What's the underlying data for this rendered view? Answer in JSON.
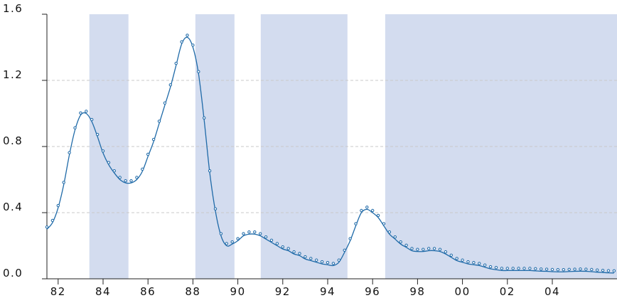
{
  "chart_data": {
    "type": "line",
    "x": [
      1981.5,
      1981.75,
      1982,
      1982.25,
      1982.5,
      1982.75,
      1983,
      1983.25,
      1983.5,
      1983.75,
      1984,
      1984.25,
      1984.5,
      1984.75,
      1985,
      1985.25,
      1985.5,
      1985.75,
      1986,
      1986.25,
      1986.5,
      1986.75,
      1987,
      1987.25,
      1987.5,
      1987.75,
      1988,
      1988.25,
      1988.5,
      1988.75,
      1989,
      1989.25,
      1989.5,
      1989.75,
      1990,
      1990.25,
      1990.5,
      1990.75,
      1991,
      1991.25,
      1991.5,
      1991.75,
      1992,
      1992.25,
      1992.5,
      1992.75,
      1993,
      1993.25,
      1993.5,
      1993.75,
      1994,
      1994.25,
      1994.5,
      1994.75,
      1995,
      1995.25,
      1995.5,
      1995.75,
      1996,
      1996.25,
      1996.5,
      1996.75,
      1997,
      1997.25,
      1997.5,
      1997.75,
      1998,
      1998.25,
      1998.5,
      1998.75,
      1999,
      1999.25,
      1999.5,
      1999.75,
      2000,
      2000.25,
      2000.5,
      2000.75,
      2001,
      2001.25,
      2001.5,
      2001.75,
      2002,
      2002.25,
      2002.5,
      2002.75,
      2003,
      2003.25,
      2003.5,
      2003.75,
      2004,
      2004.25,
      2004.5,
      2004.75,
      2005,
      2005.25,
      2005.5,
      2005.75,
      2006,
      2006.25,
      2006.5,
      2006.75
    ],
    "series": [
      {
        "color": "#1f6aa8",
        "values": [
          0.3,
          0.34,
          0.43,
          0.57,
          0.75,
          0.9,
          0.99,
          1.0,
          0.95,
          0.86,
          0.76,
          0.69,
          0.64,
          0.6,
          0.58,
          0.58,
          0.6,
          0.65,
          0.74,
          0.83,
          0.94,
          1.05,
          1.16,
          1.29,
          1.42,
          1.46,
          1.4,
          1.24,
          0.96,
          0.64,
          0.41,
          0.26,
          0.2,
          0.21,
          0.23,
          0.26,
          0.27,
          0.27,
          0.26,
          0.24,
          0.22,
          0.2,
          0.18,
          0.17,
          0.15,
          0.14,
          0.12,
          0.11,
          0.1,
          0.09,
          0.085,
          0.08,
          0.1,
          0.16,
          0.23,
          0.32,
          0.4,
          0.42,
          0.4,
          0.37,
          0.32,
          0.27,
          0.24,
          0.21,
          0.19,
          0.17,
          0.165,
          0.165,
          0.17,
          0.17,
          0.165,
          0.15,
          0.13,
          0.11,
          0.1,
          0.09,
          0.085,
          0.08,
          0.07,
          0.06,
          0.055,
          0.05,
          0.05,
          0.05,
          0.05,
          0.05,
          0.05,
          0.048,
          0.046,
          0.045,
          0.043,
          0.042,
          0.042,
          0.044,
          0.045,
          0.046,
          0.045,
          0.043,
          0.04,
          0.038,
          0.036,
          0.035
        ]
      }
    ],
    "shaded_regions": [
      [
        1983.39,
        1985.13
      ],
      [
        1988.11,
        1989.85
      ],
      [
        1991.02,
        1994.88
      ],
      [
        1996.56,
        2006.88
      ]
    ],
    "shade_color": "#d3dcef",
    "xlim": [
      1981.5,
      2006.88
    ],
    "xticks": [
      {
        "value": 1982,
        "label": "82"
      },
      {
        "value": 1984,
        "label": "84"
      },
      {
        "value": 1986,
        "label": "86"
      },
      {
        "value": 1988,
        "label": "88"
      },
      {
        "value": 1990,
        "label": "90"
      },
      {
        "value": 1992,
        "label": "92"
      },
      {
        "value": 1994,
        "label": "94"
      },
      {
        "value": 1996,
        "label": "96"
      },
      {
        "value": 1998,
        "label": "98"
      },
      {
        "value": 2000,
        "label": "00"
      },
      {
        "value": 2002,
        "label": "02"
      },
      {
        "value": 2004,
        "label": "04"
      }
    ],
    "ylim": [
      0,
      1.6
    ],
    "yticks": [
      {
        "value": 0,
        "label": "0.0"
      },
      0.4,
      0.8,
      1.2,
      1.6
    ],
    "grid": true
  }
}
